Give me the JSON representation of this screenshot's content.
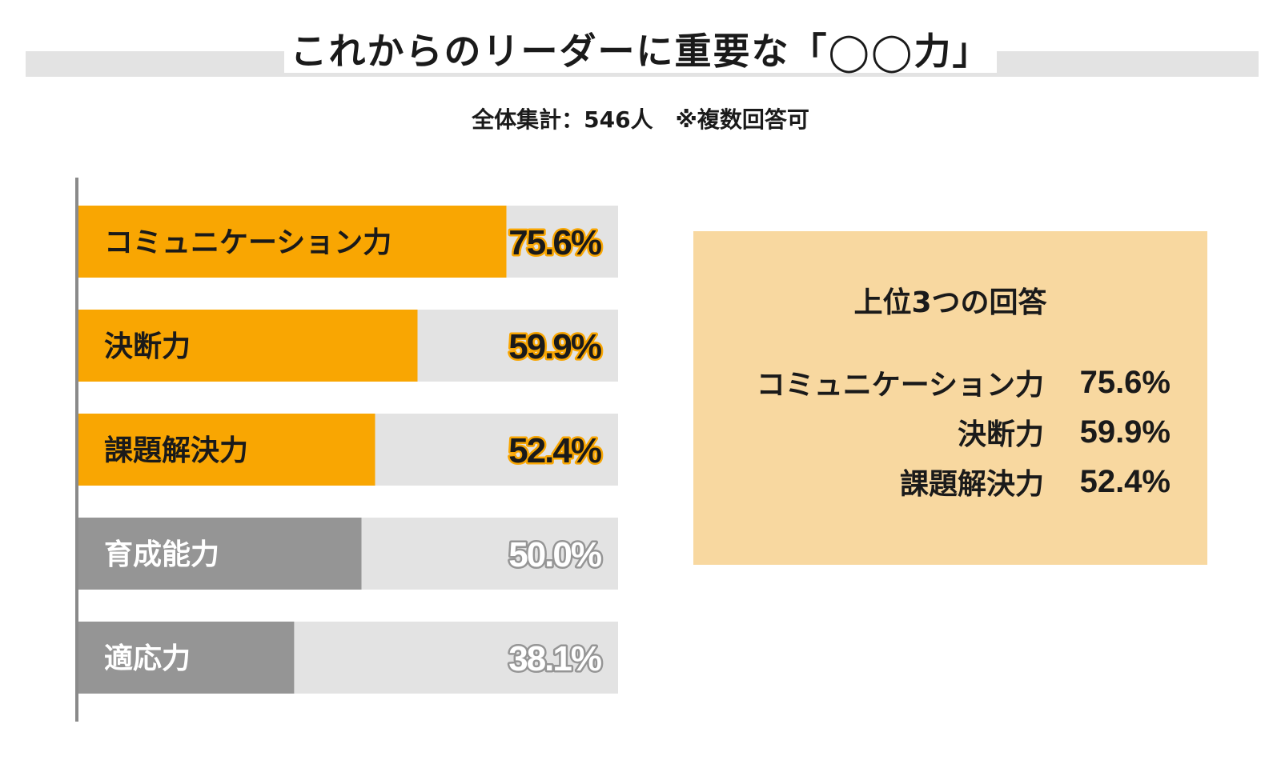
{
  "header": {
    "title": "これからのリーダーに重要な「◯◯力」",
    "subtitle": "全体集計：546人　※複数回答可"
  },
  "colors": {
    "highlight": "#f9a602",
    "muted": "#959595",
    "track": "#e3e3e3",
    "panel": "#f8d8a0"
  },
  "chart_data": {
    "type": "bar",
    "orientation": "horizontal",
    "categories": [
      "コミュニケーション力",
      "決断力",
      "課題解決力",
      "育成能力",
      "適応力"
    ],
    "values": [
      75.6,
      59.9,
      52.4,
      50.0,
      38.1
    ],
    "value_labels": [
      "75.6%",
      "59.9%",
      "52.4%",
      "50.0%",
      "38.1%"
    ],
    "highlighted": [
      true,
      true,
      true,
      false,
      false
    ],
    "xlim": [
      0,
      100
    ]
  },
  "top3": {
    "title": "上位3つの回答",
    "items": [
      {
        "name": "コミュニケーション力",
        "value": "75.6%"
      },
      {
        "name": "決断力",
        "value": "59.9%"
      },
      {
        "name": "課題解決力",
        "value": "52.4%"
      }
    ]
  }
}
